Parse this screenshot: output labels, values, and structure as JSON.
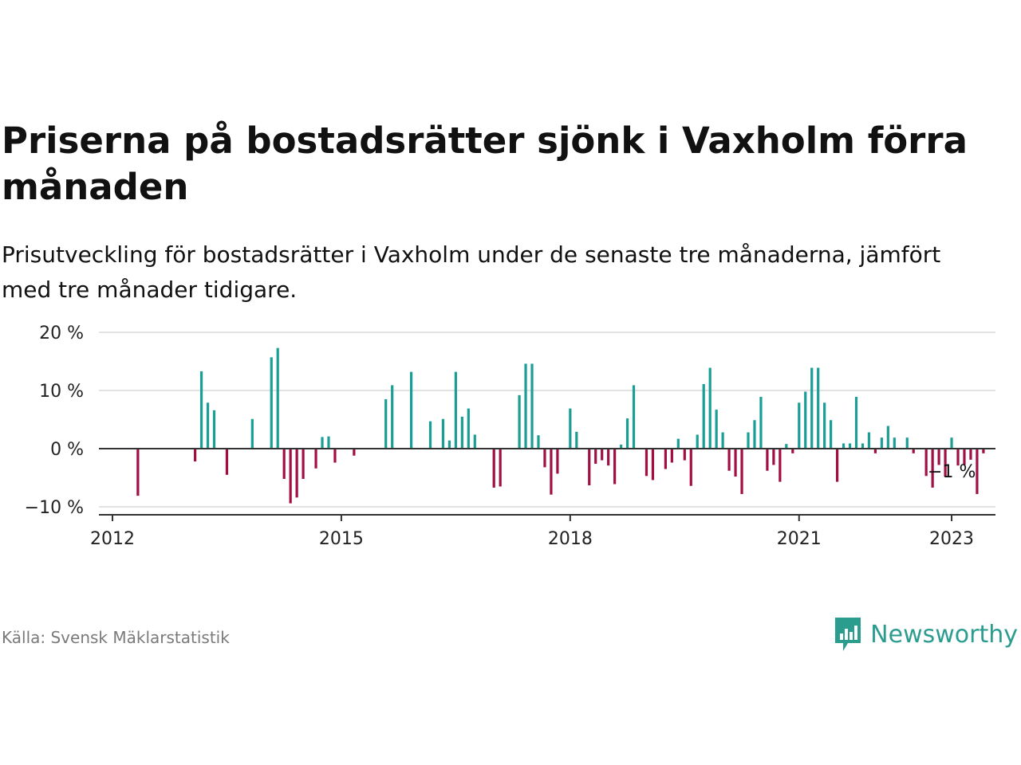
{
  "title": "Priserna på bostadsrätter sjönk i Vaxholm förra månaden",
  "subtitle": "Prisutveckling för bostadsrätter i Vaxholm under de senaste tre månaderna, jämfört med tre månader tidigare.",
  "source": "Källa: Svensk Mäklarstatistik",
  "brand": {
    "name": "Newsworthy",
    "icon": "newsworthy-logo-icon"
  },
  "colors": {
    "positive": "#1a9e96",
    "negative": "#a10e44",
    "grid": "#d9d9d9",
    "zero": "#333333"
  },
  "chart_data": {
    "type": "bar",
    "xlabel": "",
    "ylabel": "",
    "ylim": [
      -10,
      20
    ],
    "xlim": [
      "2012-01",
      "2023-08"
    ],
    "y_ticks": [
      {
        "value": 20,
        "label": "20 %"
      },
      {
        "value": 10,
        "label": "10 %"
      },
      {
        "value": 0,
        "label": "0 %"
      },
      {
        "value": -10,
        "label": "−10 %"
      }
    ],
    "x_ticks": [
      {
        "date": "2012-01",
        "label": "2012"
      },
      {
        "date": "2015-01",
        "label": "2015"
      },
      {
        "date": "2018-01",
        "label": "2018"
      },
      {
        "date": "2021-01",
        "label": "2021"
      },
      {
        "date": "2023-01",
        "label": "2023"
      }
    ],
    "grid": true,
    "annotation": {
      "date": "2023-01",
      "value": -1,
      "label": "−1 %"
    },
    "bars": [
      {
        "date": "2012-05",
        "value": -8.1
      },
      {
        "date": "2013-02",
        "value": -2.2
      },
      {
        "date": "2013-03",
        "value": 13.3
      },
      {
        "date": "2013-04",
        "value": 7.9
      },
      {
        "date": "2013-05",
        "value": 6.6
      },
      {
        "date": "2013-07",
        "value": -4.5
      },
      {
        "date": "2013-11",
        "value": 5.1
      },
      {
        "date": "2014-02",
        "value": 15.7
      },
      {
        "date": "2014-03",
        "value": 17.3
      },
      {
        "date": "2014-04",
        "value": -5.2
      },
      {
        "date": "2014-05",
        "value": -9.4
      },
      {
        "date": "2014-06",
        "value": -8.4
      },
      {
        "date": "2014-07",
        "value": -5.2
      },
      {
        "date": "2014-09",
        "value": -3.4
      },
      {
        "date": "2014-10",
        "value": 2.0
      },
      {
        "date": "2014-11",
        "value": 2.1
      },
      {
        "date": "2014-12",
        "value": -2.4
      },
      {
        "date": "2015-03",
        "value": -1.2
      },
      {
        "date": "2015-08",
        "value": 8.5
      },
      {
        "date": "2015-09",
        "value": 10.9
      },
      {
        "date": "2015-12",
        "value": 13.2
      },
      {
        "date": "2016-03",
        "value": 4.7
      },
      {
        "date": "2016-05",
        "value": 5.1
      },
      {
        "date": "2016-06",
        "value": 1.4
      },
      {
        "date": "2016-07",
        "value": 13.2
      },
      {
        "date": "2016-08",
        "value": 5.5
      },
      {
        "date": "2016-09",
        "value": 6.9
      },
      {
        "date": "2016-10",
        "value": 2.4
      },
      {
        "date": "2017-01",
        "value": -6.7
      },
      {
        "date": "2017-02",
        "value": -6.5
      },
      {
        "date": "2017-05",
        "value": 9.2
      },
      {
        "date": "2017-06",
        "value": 14.6
      },
      {
        "date": "2017-07",
        "value": 14.6
      },
      {
        "date": "2017-08",
        "value": 2.3
      },
      {
        "date": "2017-09",
        "value": -3.2
      },
      {
        "date": "2017-10",
        "value": -7.9
      },
      {
        "date": "2017-11",
        "value": -4.3
      },
      {
        "date": "2018-01",
        "value": 6.9
      },
      {
        "date": "2018-02",
        "value": 2.9
      },
      {
        "date": "2018-04",
        "value": -6.3
      },
      {
        "date": "2018-05",
        "value": -2.6
      },
      {
        "date": "2018-06",
        "value": -2.0
      },
      {
        "date": "2018-07",
        "value": -2.9
      },
      {
        "date": "2018-08",
        "value": -6.1
      },
      {
        "date": "2018-09",
        "value": 0.7
      },
      {
        "date": "2018-10",
        "value": 5.2
      },
      {
        "date": "2018-11",
        "value": 10.9
      },
      {
        "date": "2019-01",
        "value": -4.7
      },
      {
        "date": "2019-02",
        "value": -5.4
      },
      {
        "date": "2019-04",
        "value": -3.5
      },
      {
        "date": "2019-05",
        "value": -2.4
      },
      {
        "date": "2019-06",
        "value": 1.7
      },
      {
        "date": "2019-07",
        "value": -2.0
      },
      {
        "date": "2019-08",
        "value": -6.4
      },
      {
        "date": "2019-09",
        "value": 2.4
      },
      {
        "date": "2019-10",
        "value": 11.1
      },
      {
        "date": "2019-11",
        "value": 13.9
      },
      {
        "date": "2019-12",
        "value": 6.7
      },
      {
        "date": "2020-01",
        "value": 2.8
      },
      {
        "date": "2020-02",
        "value": -3.8
      },
      {
        "date": "2020-03",
        "value": -4.8
      },
      {
        "date": "2020-04",
        "value": -7.8
      },
      {
        "date": "2020-05",
        "value": 2.8
      },
      {
        "date": "2020-06",
        "value": 4.9
      },
      {
        "date": "2020-07",
        "value": 8.9
      },
      {
        "date": "2020-08",
        "value": -3.8
      },
      {
        "date": "2020-09",
        "value": -2.8
      },
      {
        "date": "2020-10",
        "value": -5.7
      },
      {
        "date": "2020-11",
        "value": 0.8
      },
      {
        "date": "2020-12",
        "value": -0.8
      },
      {
        "date": "2021-01",
        "value": 7.9
      },
      {
        "date": "2021-02",
        "value": 9.8
      },
      {
        "date": "2021-03",
        "value": 13.9
      },
      {
        "date": "2021-04",
        "value": 13.9
      },
      {
        "date": "2021-05",
        "value": 7.9
      },
      {
        "date": "2021-06",
        "value": 4.9
      },
      {
        "date": "2021-07",
        "value": -5.7
      },
      {
        "date": "2021-08",
        "value": 0.9
      },
      {
        "date": "2021-09",
        "value": 0.9
      },
      {
        "date": "2021-10",
        "value": 8.9
      },
      {
        "date": "2021-11",
        "value": 0.9
      },
      {
        "date": "2021-12",
        "value": 2.8
      },
      {
        "date": "2022-01",
        "value": -0.8
      },
      {
        "date": "2022-02",
        "value": 1.9
      },
      {
        "date": "2022-03",
        "value": 3.9
      },
      {
        "date": "2022-04",
        "value": 1.9
      },
      {
        "date": "2022-06",
        "value": 1.9
      },
      {
        "date": "2022-07",
        "value": -0.8
      },
      {
        "date": "2022-09",
        "value": -4.7
      },
      {
        "date": "2022-10",
        "value": -6.7
      },
      {
        "date": "2022-11",
        "value": -2.8
      },
      {
        "date": "2022-12",
        "value": -4.8
      },
      {
        "date": "2023-01",
        "value": 1.9
      },
      {
        "date": "2023-02",
        "value": -2.9
      },
      {
        "date": "2023-03",
        "value": -2.8
      },
      {
        "date": "2023-04",
        "value": -1.9
      },
      {
        "date": "2023-05",
        "value": -7.8
      },
      {
        "date": "2023-06",
        "value": -0.8
      }
    ]
  }
}
